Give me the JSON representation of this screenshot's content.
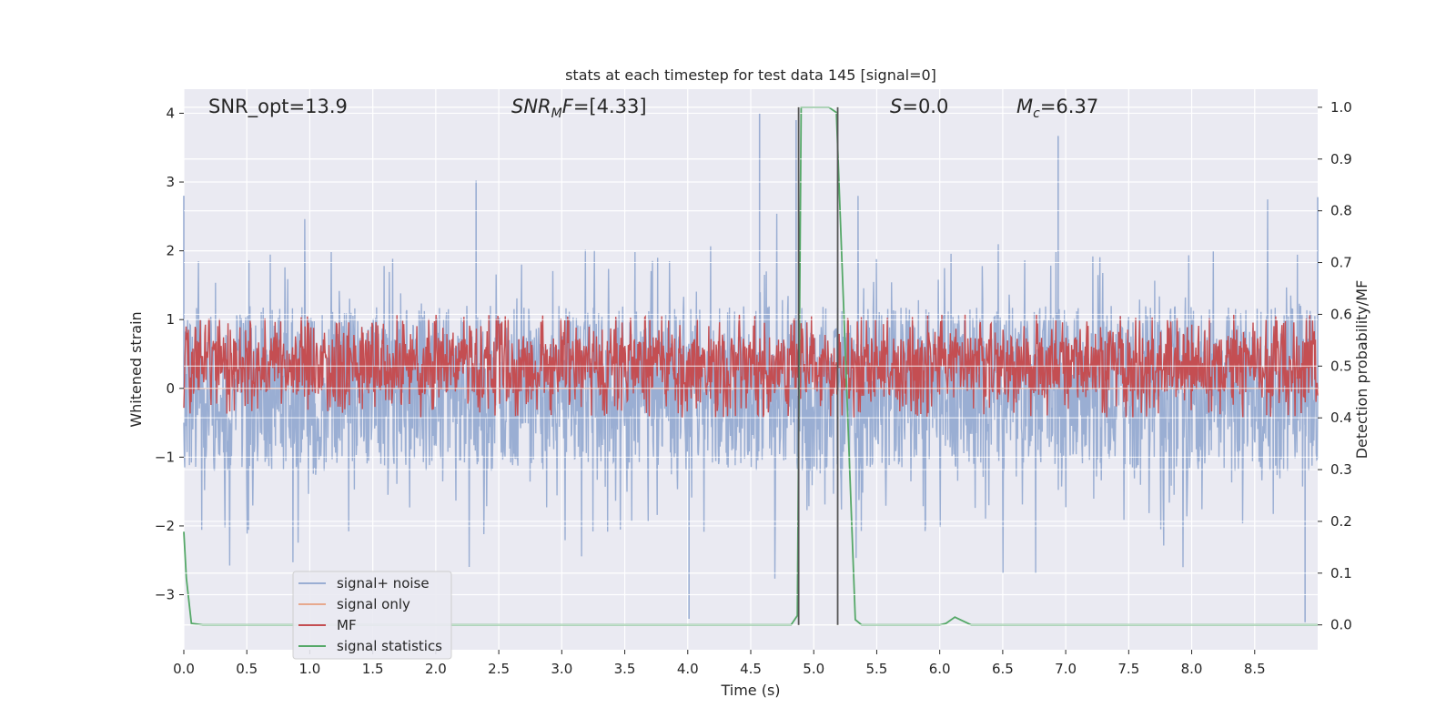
{
  "chart_data": {
    "type": "line",
    "title": "stats at each timestep for test data 145 [signal=0]",
    "xlabel": "Time (s)",
    "ylabel": "Whitened strain",
    "y2label": "Detection probability/MF",
    "xlim": [
      0.0,
      9.0
    ],
    "ylim": [
      -3.8,
      4.35
    ],
    "y2lim": [
      -0.048,
      1.035
    ],
    "x_ticks": [
      0.0,
      0.5,
      1.0,
      1.5,
      2.0,
      2.5,
      3.0,
      3.5,
      4.0,
      4.5,
      5.0,
      5.5,
      6.0,
      6.5,
      7.0,
      7.5,
      8.0,
      8.5
    ],
    "x_tick_labels": [
      "0.0",
      "0.5",
      "1.0",
      "1.5",
      "2.0",
      "2.5",
      "3.0",
      "3.5",
      "4.0",
      "4.5",
      "5.0",
      "5.5",
      "6.0",
      "6.5",
      "7.0",
      "7.5",
      "8.0",
      "8.5"
    ],
    "y_ticks": [
      4,
      3,
      2,
      1,
      0,
      -1,
      -2,
      -3
    ],
    "y_tick_labels": [
      "4",
      "3",
      "2",
      "1",
      "0",
      "−1",
      "−2",
      "−3"
    ],
    "y2_ticks": [
      1.0,
      0.9,
      0.8,
      0.7,
      0.6,
      0.5,
      0.4,
      0.3,
      0.2,
      0.1,
      0.0
    ],
    "y2_tick_labels": [
      "1.0",
      "0.9",
      "0.8",
      "0.7",
      "0.6",
      "0.5",
      "0.4",
      "0.3",
      "0.2",
      "0.1",
      "0.0"
    ],
    "grid": true,
    "legend_position": "lower-left",
    "annotations": [
      {
        "main": "SNR_opt=13.9",
        "sub": "",
        "rest": ""
      },
      {
        "main": "SNR",
        "sub": "M",
        "rest": "F=[4.33]"
      },
      {
        "main": "S",
        "sub": "",
        "rest": "=0.0"
      },
      {
        "main": "M",
        "sub": "c",
        "rest": "=6.37"
      }
    ],
    "series": [
      {
        "name": "signal+ noise",
        "color": "#9aaed3",
        "axis": "left",
        "kind": "noise",
        "spread": 1.2,
        "peak_range": [
          1.2,
          2.8
        ],
        "notable_spikes": [
          [
            0.0,
            2.8
          ],
          [
            2.32,
            3.02
          ],
          [
            4.57,
            4.0
          ],
          [
            4.86,
            3.9
          ],
          [
            6.94,
            3.67
          ],
          [
            9.0,
            2.78
          ],
          [
            4.01,
            -3.35
          ],
          [
            8.9,
            -3.4
          ]
        ]
      },
      {
        "name": "signal only",
        "color": "#e7a98e",
        "axis": "left",
        "kind": "flat",
        "values": [
          [
            0.0,
            0.0
          ],
          [
            9.0,
            0.0
          ]
        ]
      },
      {
        "name": "MF",
        "color": "#c44e52",
        "axis": "right",
        "kind": "band",
        "baseline": 0.5,
        "spread": 0.1,
        "peaks": [
          [
            0.2,
            0.59
          ],
          [
            2.5,
            0.58
          ],
          [
            3.7,
            0.59
          ],
          [
            6.2,
            0.6
          ],
          [
            8.0,
            0.58
          ]
        ]
      },
      {
        "name": "signal statistics",
        "color": "#55a868",
        "axis": "right",
        "kind": "line",
        "x": [
          0.0,
          0.02,
          0.06,
          0.15,
          4.82,
          4.87,
          4.9,
          4.94,
          5.12,
          5.18,
          5.33,
          5.38,
          6.0,
          6.05,
          6.12,
          6.25,
          9.0
        ],
        "values": [
          0.18,
          0.09,
          0.003,
          0.0,
          0.0,
          0.018,
          1.0,
          1.0,
          1.0,
          0.99,
          0.01,
          0.0,
          0.0,
          0.003,
          0.015,
          0.0,
          0.0
        ]
      }
    ],
    "markers": [
      {
        "x": 4.88,
        "from": 0.0,
        "to": 1.0,
        "color": "#555555"
      },
      {
        "x": 5.19,
        "from": 0.0,
        "to": 1.0,
        "color": "#555555"
      }
    ]
  }
}
